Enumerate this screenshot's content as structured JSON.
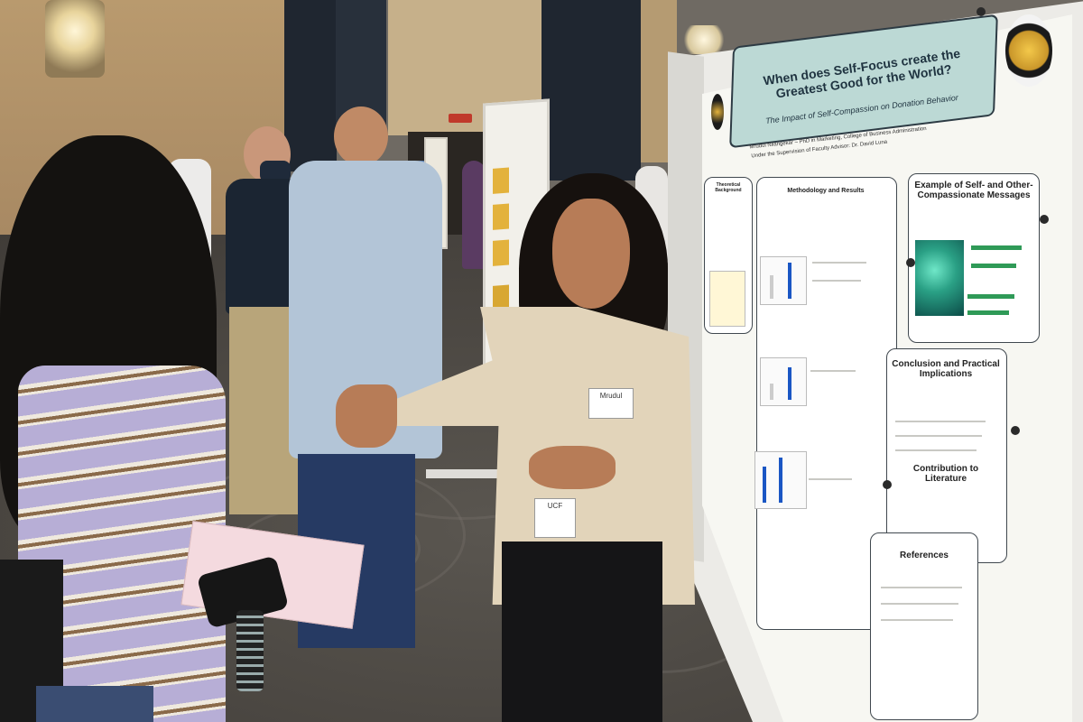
{
  "scene": {
    "description_tags": [
      "poster-session",
      "conference-hall",
      "presenter",
      "audience"
    ]
  },
  "poster": {
    "title": "When does Self-Focus create the Greatest Good for the World?",
    "subtitle": "The Impact of Self-Compassion on Donation Behavior",
    "author_line": "Mrudul Nilangekar – PhD in Marketing, College of Business Administration",
    "advisor_line": "Under the Supervision of Faculty Advisor: Dr. David Luna",
    "sections": {
      "theoretical": "Theoretical Background",
      "methods": "Methodology and Results",
      "examples": "Example of Self- and Other-Compassionate Messages",
      "conclusion": "Conclusion and Practical Implications",
      "contribution": "Contribution to Literature",
      "references": "References"
    }
  },
  "badges": {
    "name_tag": "Mrudul",
    "lanyard_tag": "UCF"
  },
  "colors": {
    "poster_title_bg": "#bcd9d5",
    "speaker_top": "#d22a22",
    "speaker_blazer": "#e2d4ba",
    "chart_bar": "#1a56c4",
    "logo_gold": "#f3c84a"
  }
}
